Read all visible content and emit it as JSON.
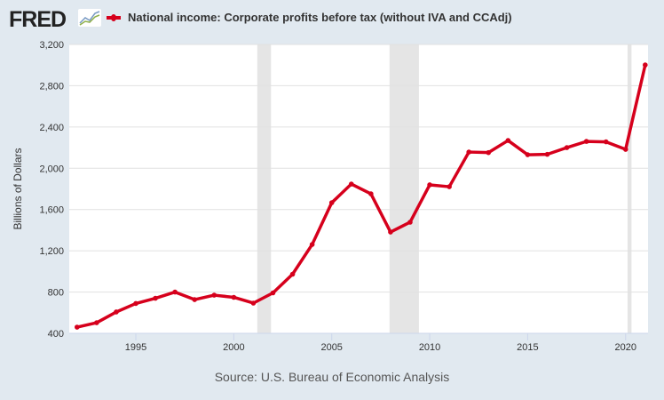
{
  "header": {
    "logo": "FRED",
    "legend_label": "National income: Corporate profits before tax (without IVA and CCAdj)"
  },
  "source": "Source: U.S. Bureau of Economic Analysis",
  "chart_data": {
    "type": "line",
    "title": "National income: Corporate profits before tax (without IVA and CCAdj)",
    "xlabel": "",
    "ylabel": "Billions of Dollars",
    "ylim": [
      400,
      3200
    ],
    "xlim": [
      1992,
      2021
    ],
    "yticks": [
      400,
      800,
      1200,
      1600,
      2000,
      2400,
      2800,
      3200
    ],
    "ytick_labels": [
      "400",
      "800",
      "1,200",
      "1,600",
      "2,000",
      "2,400",
      "2,800",
      "3,200"
    ],
    "xticks": [
      1995,
      2000,
      2005,
      2010,
      2015,
      2020
    ],
    "xtick_labels": [
      "1995",
      "2000",
      "2005",
      "2010",
      "2015",
      "2020"
    ],
    "grid": true,
    "recessions": [
      [
        2001.2,
        2001.9
      ],
      [
        2007.95,
        2009.45
      ],
      [
        2020.1,
        2020.3
      ]
    ],
    "series": [
      {
        "name": "National income: Corporate profits before tax (without IVA and CCAdj)",
        "color": "#d6001c",
        "x": [
          1992,
          1993,
          1994,
          1995,
          1996,
          1997,
          1998,
          1999,
          2000,
          2001,
          2002,
          2003,
          2004,
          2005,
          2006,
          2007,
          2008,
          2009,
          2010,
          2011,
          2012,
          2013,
          2014,
          2015,
          2016,
          2017,
          2018,
          2019,
          2020,
          2021
        ],
        "values": [
          460,
          503,
          607,
          689,
          740,
          800,
          727,
          770,
          749,
          693,
          792,
          973,
          1261,
          1666,
          1847,
          1752,
          1382,
          1477,
          1839,
          1821,
          2157,
          2152,
          2269,
          2131,
          2135,
          2200,
          2260,
          2256,
          2183,
          3001
        ]
      }
    ]
  }
}
